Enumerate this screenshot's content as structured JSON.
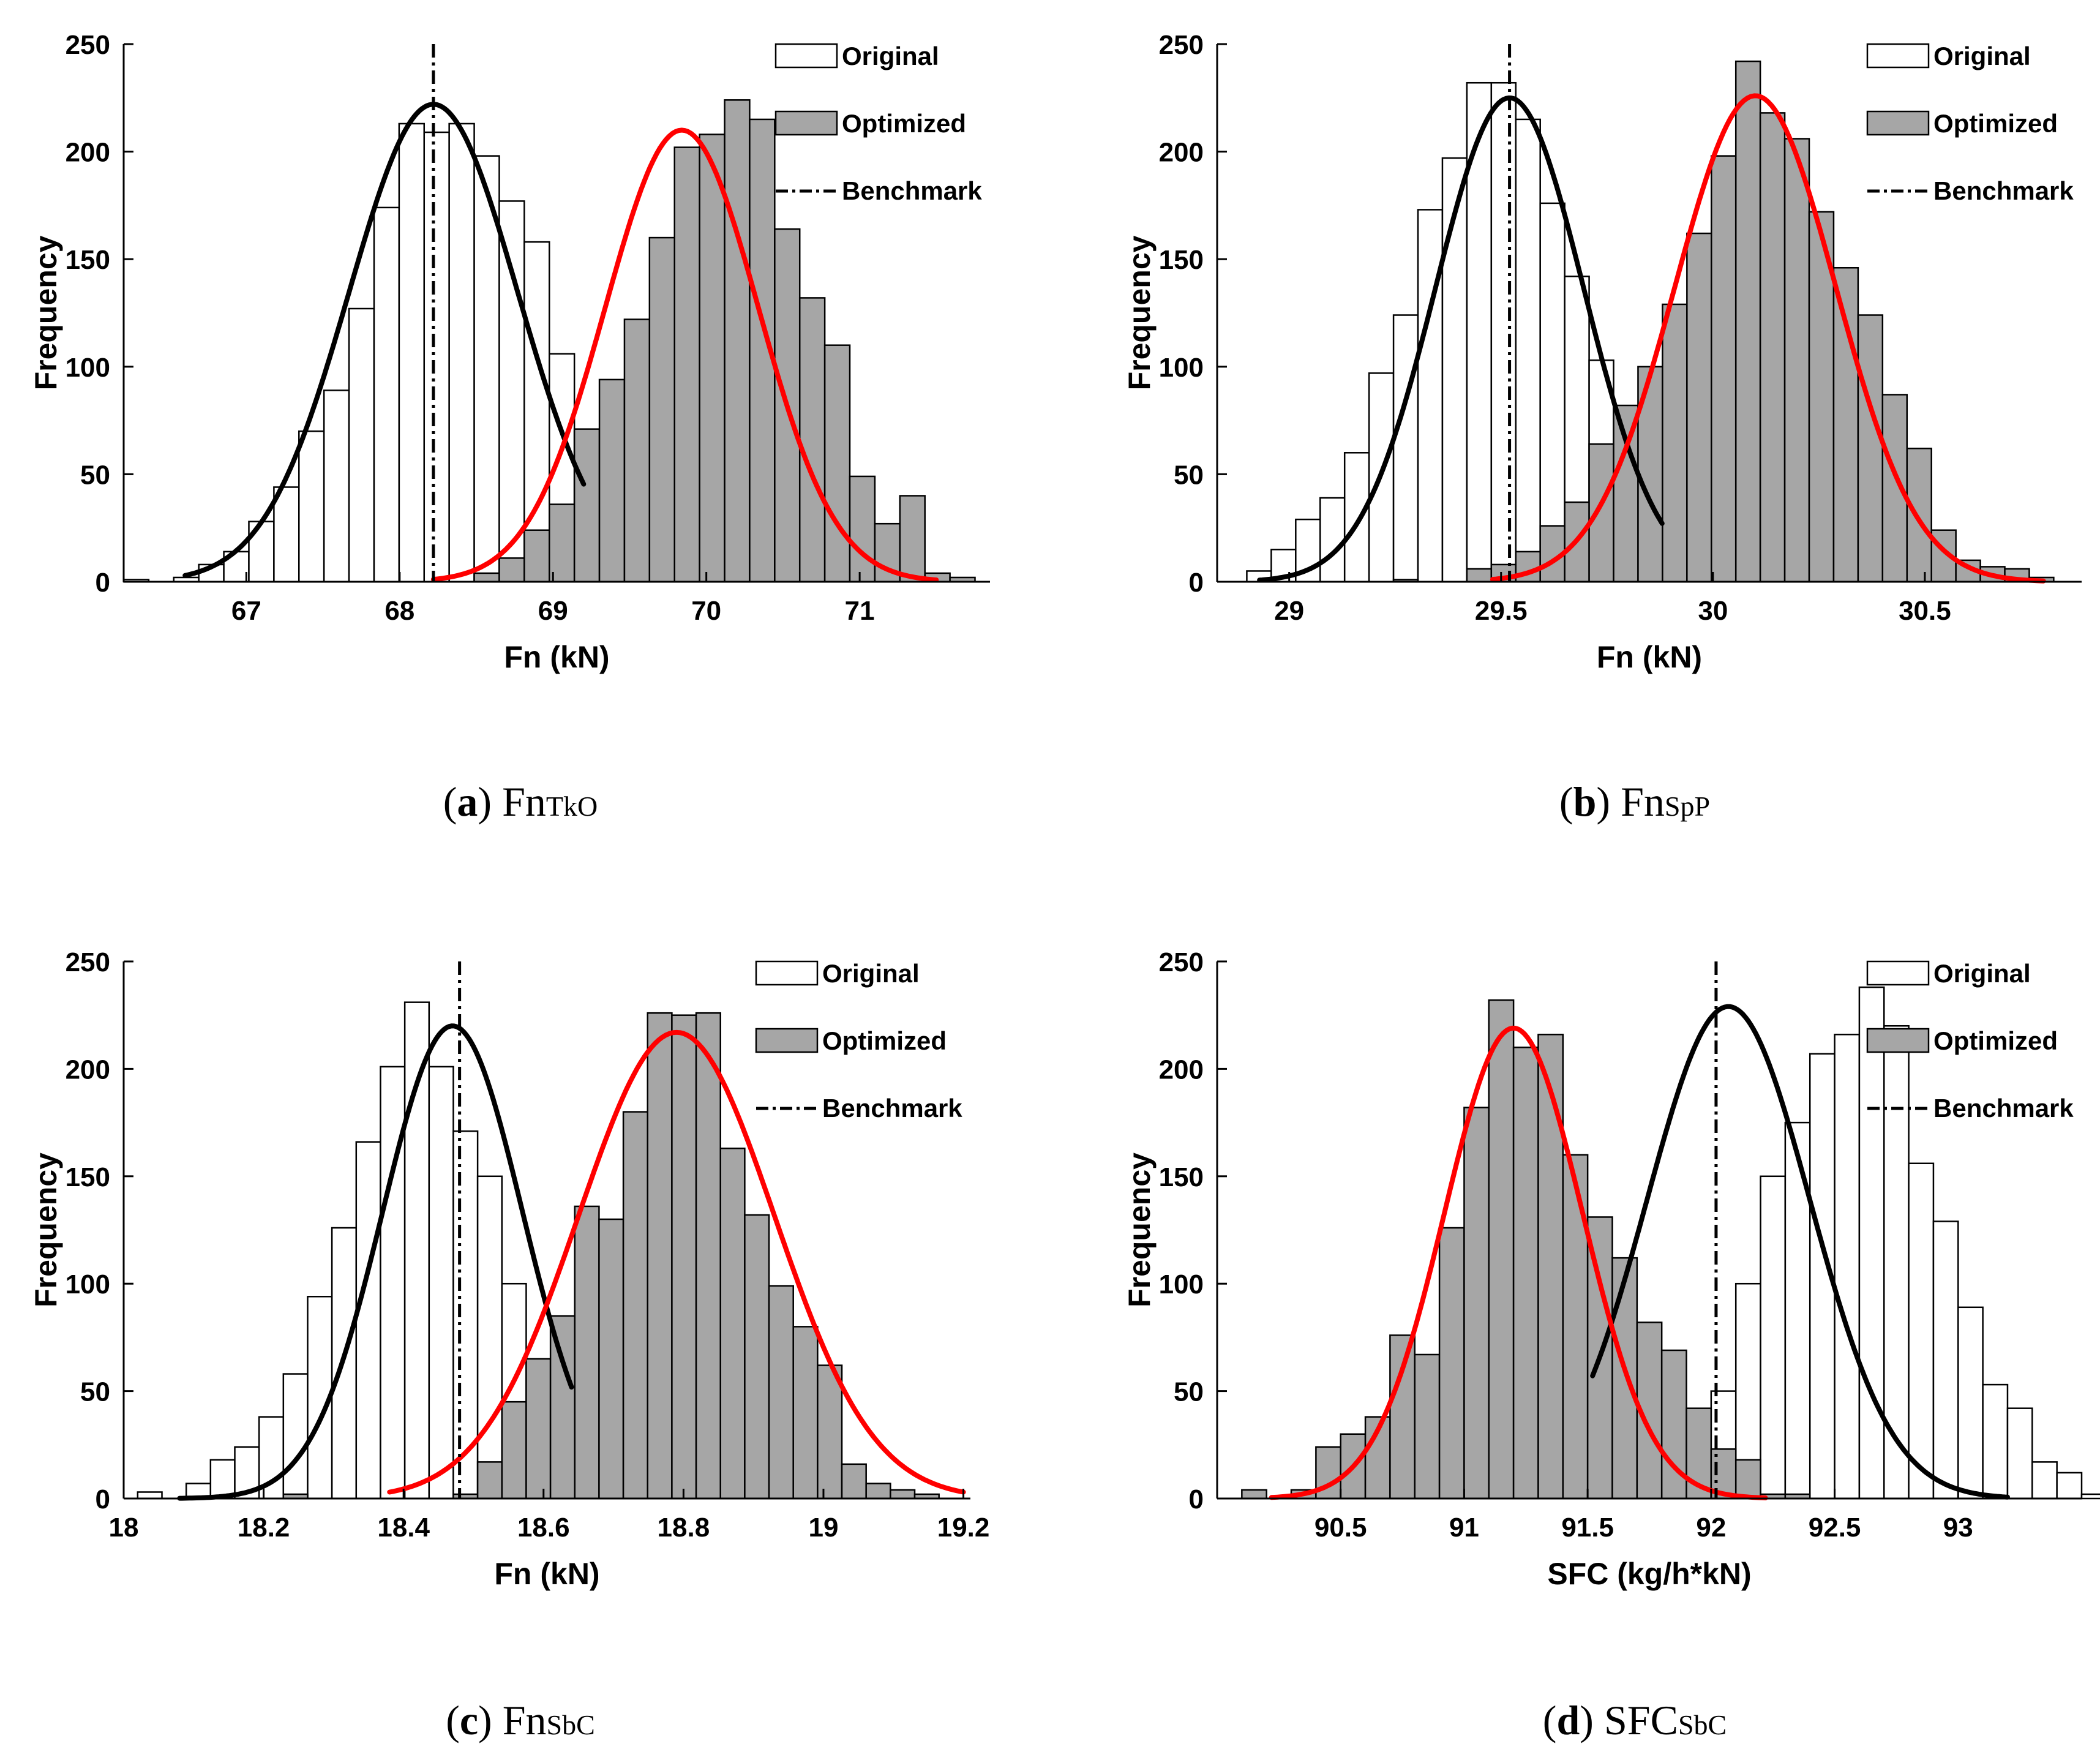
{
  "legend": {
    "original": "Original",
    "optimized": "Optimized",
    "benchmark": "Benchmark"
  },
  "colors": {
    "original_fill": "#ffffff",
    "optimized_fill": "#a6a6a6",
    "bar_edge": "#000000",
    "original_fit": "#000000",
    "optimized_fit": "#ff0000",
    "benchmark_line": "#000000"
  },
  "captions": [
    {
      "letter": "a",
      "main": "Fn",
      "sub": "TkO"
    },
    {
      "letter": "b",
      "main": "Fn",
      "sub": "SpP"
    },
    {
      "letter": "c",
      "main": "Fn",
      "sub": "SbC"
    },
    {
      "letter": "d",
      "main": "SFC",
      "sub": "SbC"
    }
  ],
  "chart_data": [
    {
      "type": "bar",
      "panel": "a",
      "xlabel": "Fn (kN)",
      "ylabel": "Frequency",
      "xlim": [
        66.2,
        71.85
      ],
      "ylim": [
        0,
        250
      ],
      "xticks": [
        67,
        68,
        69,
        70,
        71
      ],
      "xtick_labels": [
        "67",
        "68",
        "69",
        "70",
        "71"
      ],
      "yticks": [
        0,
        50,
        100,
        150,
        200,
        250
      ],
      "benchmark": 68.22,
      "legend_position": "top-right",
      "series": [
        {
          "name": "Original",
          "bin_start": 66.2,
          "bin_width": 0.1633,
          "counts": [
            1,
            0,
            2,
            8,
            14,
            28,
            44,
            70,
            89,
            127,
            174,
            213,
            209,
            213,
            198,
            177,
            158,
            106,
            70,
            30,
            0,
            3,
            0,
            0,
            0,
            1,
            0,
            0,
            0,
            0,
            0,
            0,
            0,
            0
          ],
          "fit": {
            "mean": 68.22,
            "peak": 222,
            "sigma": 0.55,
            "range": [
              66.6,
              69.2
            ]
          }
        },
        {
          "name": "Optimized",
          "bin_start": 66.2,
          "bin_width": 0.1633,
          "counts": [
            0,
            0,
            0,
            0,
            0,
            0,
            0,
            0,
            0,
            0,
            0,
            0,
            0,
            0,
            4,
            11,
            24,
            36,
            71,
            94,
            122,
            160,
            202,
            208,
            224,
            215,
            164,
            132,
            110,
            49,
            27,
            40,
            4,
            2
          ]
        }
      ],
      "fit_optimized": {
        "mean": 69.84,
        "peak": 210,
        "sigma": 0.5,
        "range": [
          68.22,
          71.5
        ]
      }
    },
    {
      "type": "bar",
      "panel": "b",
      "xlabel": "Fn (kN)",
      "ylabel": "Frequency",
      "xlim": [
        28.83,
        30.87
      ],
      "ylim": [
        0,
        250
      ],
      "xticks": [
        29,
        29.5,
        30,
        30.5
      ],
      "xtick_labels": [
        "29",
        "29.5",
        "30",
        "30.5"
      ],
      "yticks": [
        0,
        50,
        100,
        150,
        200,
        250
      ],
      "benchmark": 29.52,
      "legend_position": "top-right",
      "series": [
        {
          "name": "Original",
          "bin_start": 28.9,
          "bin_width": 0.0577,
          "counts": [
            5,
            15,
            29,
            39,
            60,
            97,
            124,
            173,
            197,
            232,
            232,
            215,
            176,
            142,
            103,
            81,
            48,
            22,
            10,
            5,
            3,
            0,
            0,
            0,
            0,
            0,
            0,
            0,
            0,
            0,
            0,
            0,
            0
          ],
          "fit": {
            "mean": 29.52,
            "peak": 225,
            "sigma": 0.175,
            "range": [
              28.93,
              29.88
            ]
          }
        },
        {
          "name": "Optimized",
          "bin_start": 28.9,
          "bin_width": 0.0577,
          "counts": [
            0,
            0,
            0,
            0,
            0,
            0,
            1,
            0,
            0,
            6,
            8,
            14,
            26,
            37,
            64,
            82,
            100,
            129,
            162,
            198,
            242,
            218,
            206,
            172,
            146,
            124,
            87,
            62,
            24,
            10,
            7,
            6,
            2
          ]
        }
      ],
      "fit_optimized": {
        "mean": 30.1,
        "peak": 226,
        "sigma": 0.19,
        "range": [
          29.48,
          30.78
        ]
      }
    },
    {
      "type": "bar",
      "panel": "c",
      "xlabel": "Fn (kN)",
      "ylabel": "Frequency",
      "xlim": [
        18,
        19.21
      ],
      "ylim": [
        0,
        250
      ],
      "xticks": [
        18,
        18.2,
        18.4,
        18.6,
        18.8,
        19,
        19.2
      ],
      "xtick_labels": [
        "18",
        "18.2",
        "18.4",
        "18.6",
        "18.8",
        "19",
        "19.2"
      ],
      "yticks": [
        0,
        50,
        100,
        150,
        200,
        250
      ],
      "benchmark": 18.48,
      "legend_position": "top-right",
      "series": [
        {
          "name": "Original",
          "bin_start": 18.02,
          "bin_width": 0.0347,
          "counts": [
            3,
            0,
            7,
            18,
            24,
            38,
            58,
            94,
            126,
            166,
            201,
            231,
            201,
            171,
            150,
            100,
            0,
            0,
            0,
            0,
            0,
            0,
            0,
            0,
            0,
            0,
            0,
            0,
            0,
            0,
            0,
            0,
            0,
            0
          ],
          "fit": {
            "mean": 18.47,
            "peak": 220,
            "sigma": 0.1,
            "range": [
              18.08,
              18.64
            ]
          }
        },
        {
          "name": "Optimized",
          "bin_start": 18.02,
          "bin_width": 0.0347,
          "counts": [
            0,
            0,
            0,
            0,
            0,
            0,
            2,
            0,
            0,
            0,
            0,
            0,
            0,
            2,
            17,
            45,
            65,
            85,
            136,
            130,
            180,
            226,
            225,
            226,
            163,
            132,
            99,
            80,
            62,
            16,
            7,
            4,
            2,
            0
          ]
        }
      ],
      "fit_optimized": {
        "mean": 18.79,
        "peak": 217,
        "sigma": 0.14,
        "range": [
          18.38,
          19.2
        ]
      }
    },
    {
      "type": "bar",
      "panel": "d",
      "xlabel": "SFC (kg/h*kN)",
      "ylabel": "Frequency",
      "xlim": [
        90.0,
        93.5
      ],
      "ylim": [
        0,
        250
      ],
      "xticks": [
        90.5,
        91,
        91.5,
        92,
        92.5,
        93
      ],
      "xtick_labels": [
        "90.5",
        "91",
        "91.5",
        "92",
        "92.5",
        "93"
      ],
      "yticks": [
        0,
        50,
        100,
        150,
        200,
        250
      ],
      "benchmark": 92.02,
      "legend_position": "top-right",
      "series": [
        {
          "name": "Original",
          "bin_start": 90.1,
          "bin_width": 0.1,
          "counts": [
            0,
            0,
            0,
            0,
            0,
            0,
            0,
            0,
            0,
            0,
            0,
            0,
            0,
            0,
            0,
            0,
            0,
            0,
            10,
            50,
            100,
            150,
            175,
            207,
            216,
            238,
            220,
            156,
            129,
            89,
            53,
            42,
            17,
            12,
            2,
            2,
            1
          ],
          "fit": {
            "mean": 92.07,
            "peak": 229,
            "sigma": 0.33,
            "range": [
              91.52,
              93.2
            ]
          }
        },
        {
          "name": "Optimized",
          "bin_start": 90.1,
          "bin_width": 0.1,
          "counts": [
            4,
            0,
            4,
            24,
            30,
            38,
            76,
            67,
            126,
            182,
            232,
            210,
            216,
            160,
            131,
            112,
            82,
            69,
            42,
            23,
            18,
            2,
            2,
            0,
            0,
            0,
            0,
            0,
            0,
            0,
            0,
            0,
            0,
            0,
            0,
            0,
            0
          ]
        }
      ],
      "fit_optimized": {
        "mean": 91.2,
        "peak": 219,
        "sigma": 0.28,
        "range": [
          90.22,
          92.22
        ]
      }
    }
  ]
}
